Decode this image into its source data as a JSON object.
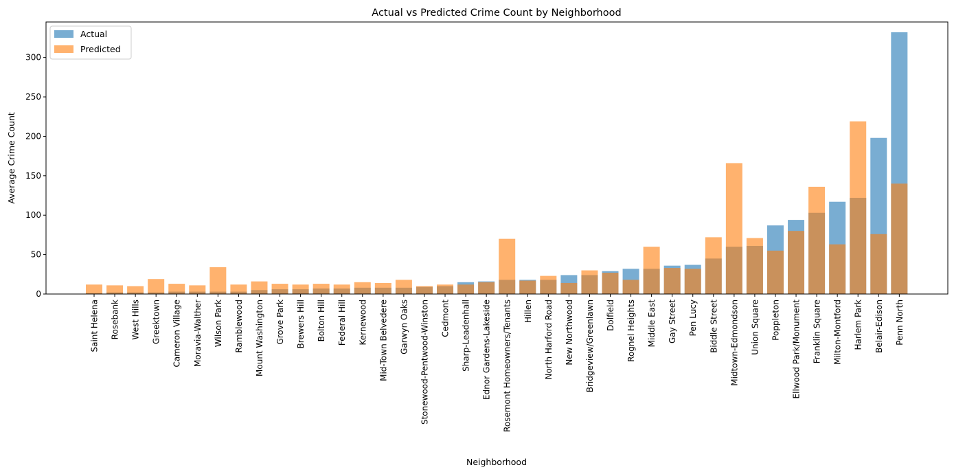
{
  "chart_data": {
    "type": "bar",
    "title": "Actual vs Predicted Crime Count by Neighborhood",
    "xlabel": "Neighborhood",
    "ylabel": "Average Crime Count",
    "ylim": [
      0,
      345
    ],
    "yticks": [
      0,
      50,
      100,
      150,
      200,
      250,
      300
    ],
    "legend_position": "top-left",
    "grid": false,
    "categories": [
      "Saint Helena",
      "Rosebank",
      "West Hills",
      "Greektown",
      "Cameron Village",
      "Moravia-Walther",
      "Wilson Park",
      "Ramblewood",
      "Mount Washington",
      "Grove Park",
      "Brewers Hill",
      "Bolton Hill",
      "Federal Hill",
      "Kernewood",
      "Mid-Town Belvedere",
      "Garwyn Oaks",
      "Stonewood-Pentwood-Winston",
      "Cedmont",
      "Sharp-Leadenhall",
      "Ednor Gardens-Lakeside",
      "Rosemont Homeowners/Tenants",
      "Hillen",
      "North Harford Road",
      "New Northwood",
      "Bridgeview/Greenlawn",
      "Dolfield",
      "Rognel Heights",
      "Middle East",
      "Gay Street",
      "Pen Lucy",
      "Biddle Street",
      "Midtown-Edmondson",
      "Union Square",
      "Poppleton",
      "Ellwood Park/Monument",
      "Franklin Square",
      "Milton-Montford",
      "Harlem Park",
      "Belair-Edison",
      "Penn North"
    ],
    "series": [
      {
        "name": "Actual",
        "color": "#1f77b4",
        "opacity": 0.6,
        "values": [
          1,
          2,
          2,
          2,
          3,
          3,
          3,
          3,
          5,
          6,
          6,
          7,
          7,
          8,
          8,
          8,
          9,
          10,
          15,
          16,
          18,
          18,
          18,
          24,
          24,
          29,
          32,
          32,
          36,
          37,
          45,
          60,
          61,
          87,
          94,
          103,
          117,
          122,
          198,
          332
        ]
      },
      {
        "name": "Predicted",
        "color": "#ff7f0e",
        "opacity": 0.6,
        "values": [
          12,
          11,
          10,
          19,
          13,
          11,
          34,
          12,
          16,
          13,
          12,
          13,
          12,
          15,
          14,
          18,
          10,
          12,
          12,
          15,
          70,
          17,
          23,
          14,
          30,
          27,
          18,
          60,
          33,
          32,
          72,
          166,
          71,
          55,
          80,
          136,
          63,
          219,
          76,
          140
        ]
      }
    ]
  }
}
